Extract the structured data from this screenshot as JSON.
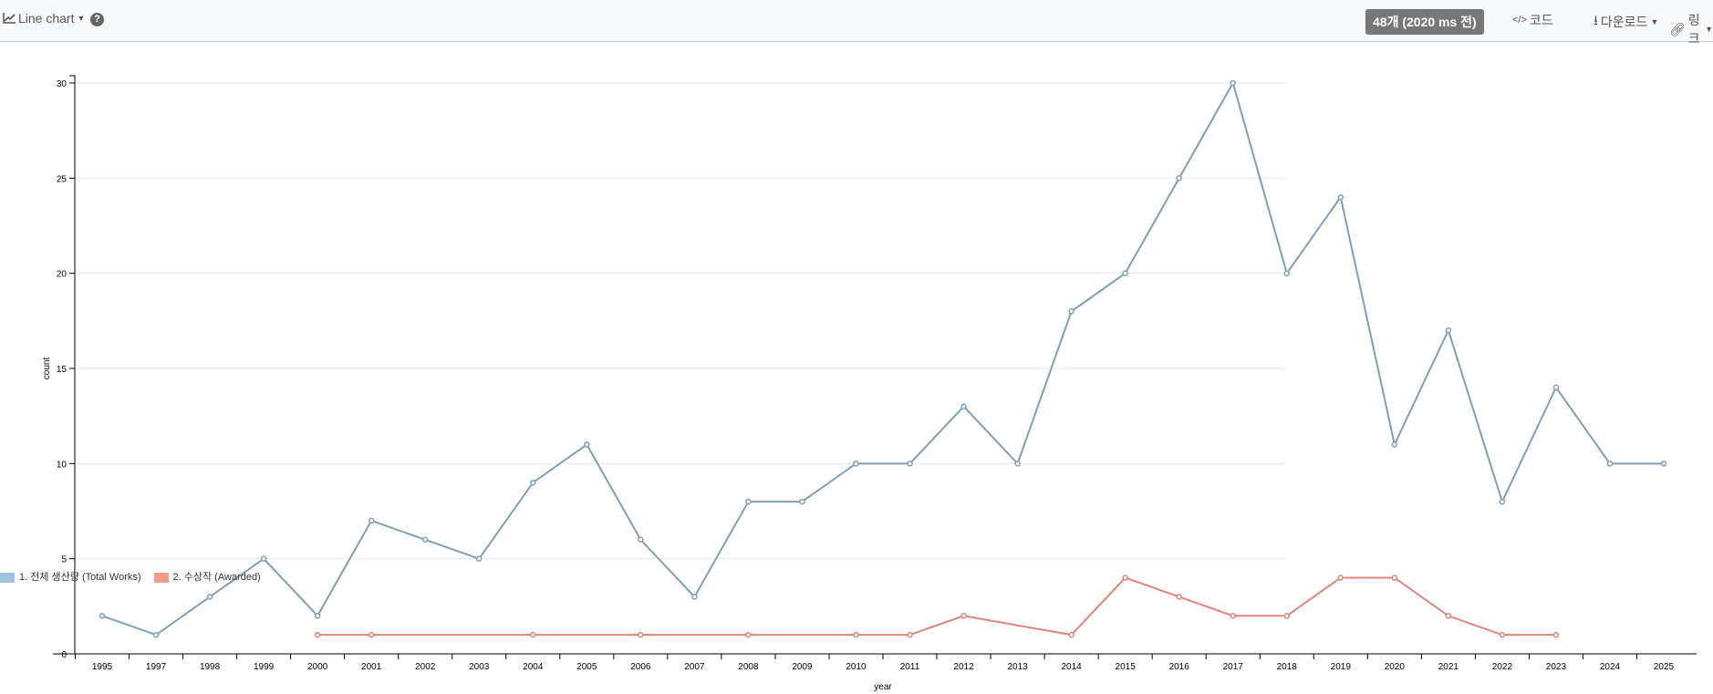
{
  "toolbar": {
    "chart_type": "Line chart",
    "help": "?",
    "status_badge": "48개 (2020 ms 전)",
    "code": "코드",
    "download": "다운로드",
    "link": "링크"
  },
  "colors": {
    "series1": "#7f9fb9",
    "series2": "#e0837a",
    "legend1": "#9ec3df",
    "legend2": "#f9988c"
  },
  "chart_data": {
    "type": "line",
    "title": "",
    "xlabel": "year",
    "ylabel": "count",
    "ylim": [
      0,
      30
    ],
    "yticks": [
      0,
      5,
      10,
      15,
      20,
      25,
      30
    ],
    "grid": true,
    "legend_placement": "bottom-left",
    "categories": [
      "1995",
      "1997",
      "1998",
      "1999",
      "2000",
      "2001",
      "2002",
      "2003",
      "2004",
      "2005",
      "2006",
      "2007",
      "2008",
      "2009",
      "2010",
      "2011",
      "2012",
      "2013",
      "2014",
      "2015",
      "2016",
      "2017",
      "2018",
      "2019",
      "2020",
      "2021",
      "2022",
      "2023",
      "2024",
      "2025"
    ],
    "series": [
      {
        "name": "1. 전체 생산량 (Total Works)",
        "values": [
          2,
          1,
          3,
          5,
          2,
          7,
          6,
          5,
          9,
          11,
          6,
          3,
          8,
          8,
          10,
          10,
          13,
          10,
          18,
          20,
          25,
          30,
          20,
          24,
          11,
          17,
          8,
          14,
          10,
          10
        ]
      },
      {
        "name": "2. 수상작 (Awarded)",
        "values": [
          null,
          null,
          null,
          null,
          1,
          1,
          null,
          null,
          1,
          null,
          1,
          null,
          1,
          null,
          1,
          1,
          2,
          null,
          1,
          4,
          3,
          2,
          2,
          4,
          4,
          2,
          1,
          1,
          null,
          null
        ]
      }
    ]
  }
}
